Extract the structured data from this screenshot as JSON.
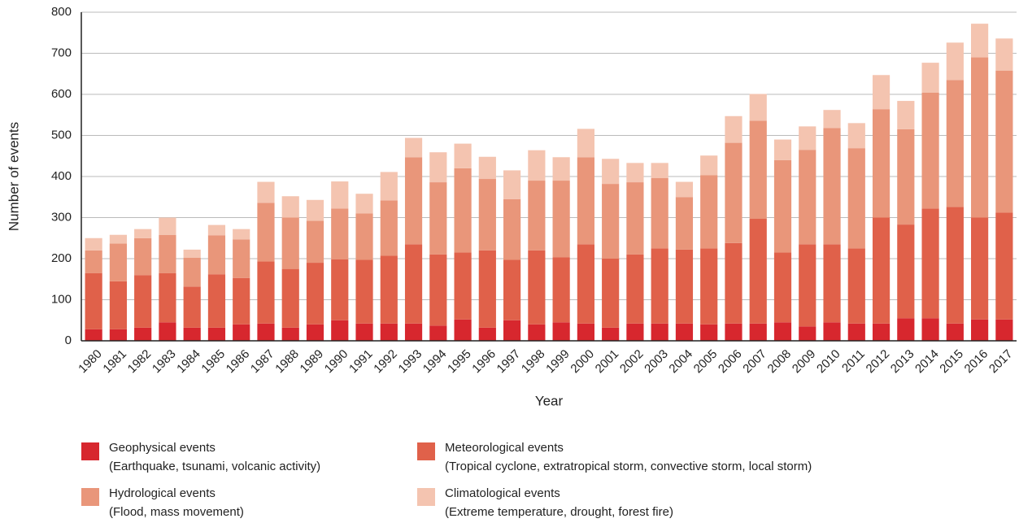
{
  "chart_data": {
    "type": "stacked_bar",
    "x_label": "Year",
    "y_label": "Number of events",
    "categories": [
      "1980",
      "1981",
      "1982",
      "1983",
      "1984",
      "1985",
      "1986",
      "1987",
      "1988",
      "1989",
      "1990",
      "1991",
      "1992",
      "1993",
      "1994",
      "1995",
      "1996",
      "1997",
      "1998",
      "1999",
      "2000",
      "2001",
      "2002",
      "2003",
      "2004",
      "2005",
      "2006",
      "2007",
      "2008",
      "2009",
      "2010",
      "2011",
      "2012",
      "2013",
      "2014",
      "2015",
      "2016",
      "2017"
    ],
    "ylim": [
      0,
      800
    ],
    "yticks": [
      0,
      100,
      200,
      300,
      400,
      500,
      600,
      700,
      800
    ],
    "grid": true,
    "series": [
      {
        "name": "Geophysical events",
        "description": "(Earthquake, tsunami, volcanic activity)",
        "color": "#d7272e",
        "values": [
          28,
          28,
          32,
          45,
          32,
          32,
          40,
          42,
          32,
          40,
          50,
          42,
          42,
          42,
          37,
          52,
          32,
          50,
          40,
          45,
          42,
          32,
          42,
          42,
          42,
          40,
          42,
          42,
          45,
          35,
          45,
          42,
          42,
          55,
          55,
          42,
          52,
          52
        ]
      },
      {
        "name": "Meteorological events",
        "description": "(Tropical cyclone, extratropical storm, convective storm, local storm)",
        "color": "#e0614a",
        "values": [
          137,
          117,
          128,
          120,
          100,
          130,
          113,
          151,
          143,
          150,
          148,
          155,
          165,
          193,
          173,
          163,
          188,
          147,
          180,
          158,
          193,
          168,
          168,
          183,
          180,
          185,
          196,
          255,
          170,
          200,
          190,
          183,
          258,
          228,
          267,
          284,
          248,
          260
        ]
      },
      {
        "name": "Hydrological events",
        "description": "(Flood, mass movement)",
        "color": "#e9967a",
        "values": [
          55,
          92,
          90,
          93,
          70,
          95,
          94,
          143,
          125,
          102,
          124,
          113,
          135,
          212,
          176,
          205,
          174,
          148,
          170,
          187,
          212,
          182,
          176,
          171,
          128,
          178,
          244,
          239,
          225,
          230,
          283,
          244,
          264,
          232,
          282,
          309,
          390,
          346
        ]
      },
      {
        "name": "Climatological events",
        "description": "(Extreme temperature, drought, forest fire)",
        "color": "#f4c4b0",
        "values": [
          30,
          21,
          22,
          42,
          20,
          25,
          25,
          51,
          52,
          51,
          66,
          48,
          69,
          47,
          73,
          60,
          54,
          70,
          74,
          57,
          69,
          61,
          47,
          37,
          37,
          48,
          65,
          65,
          50,
          57,
          44,
          61,
          83,
          69,
          73,
          91,
          82,
          78
        ]
      }
    ]
  }
}
